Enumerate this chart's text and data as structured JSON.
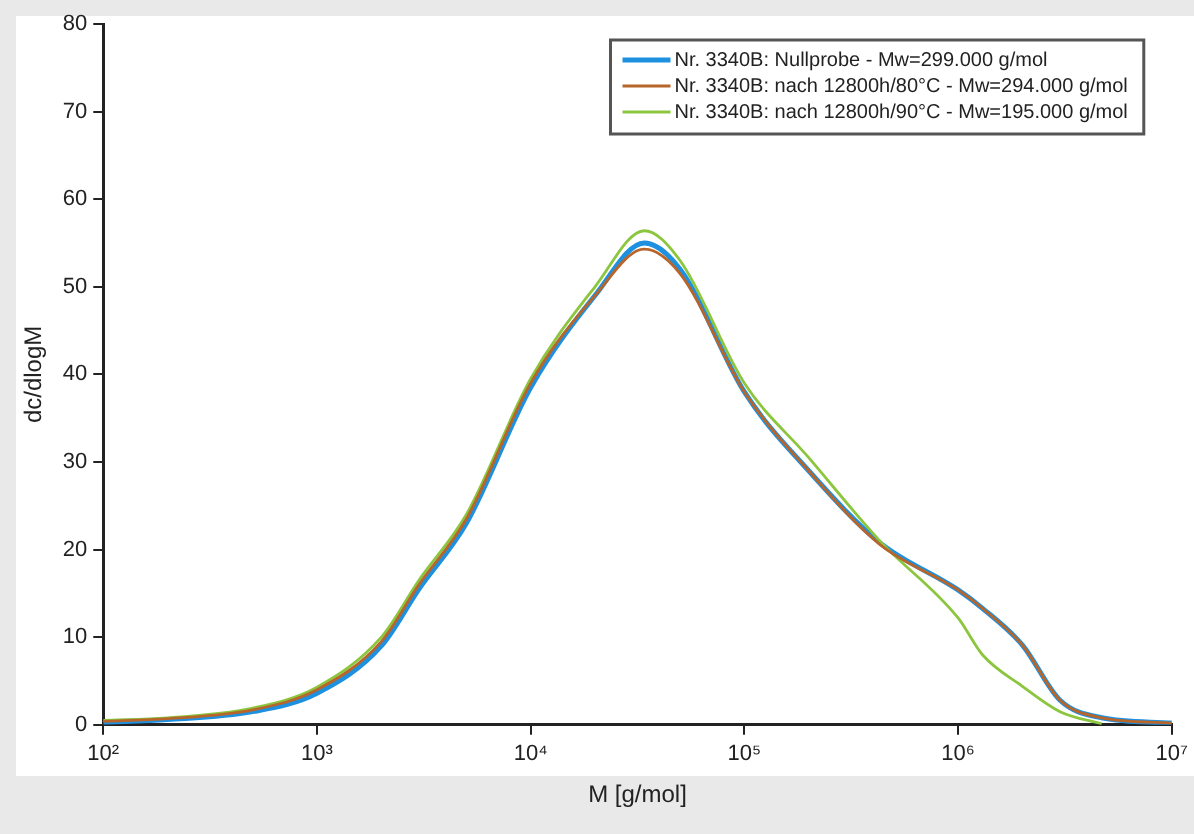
{
  "chart_data": {
    "type": "line",
    "xlabel": "M [g/mol]",
    "ylabel": "dc/dlogM",
    "log": "x",
    "x": [
      100,
      200,
      500,
      1000,
      2000,
      3000,
      5000,
      10000,
      20000,
      34000,
      50000,
      100000,
      200000,
      430000,
      1000000,
      1300000,
      2000000,
      3000000,
      4700000,
      10000000
    ],
    "series": [
      {
        "name": "Nr. 3340B: Nullprobe - Mw=299.000 g/mol",
        "color": "#1e90e0",
        "values": [
          0.3,
          0.6,
          1.5,
          3.6,
          9,
          15.5,
          23,
          38.5,
          49,
          55,
          52,
          38,
          29,
          20.8,
          15.4,
          13.3,
          9.1,
          2.8,
          0.8,
          0.2
        ]
      },
      {
        "name": "Nr. 3340B: nach 12800h/80°C - Mw=294.000 g/mol",
        "color": "#b8652a",
        "values": [
          0.4,
          0.7,
          1.7,
          4,
          9.5,
          16,
          23.5,
          39,
          49,
          54.3,
          51.5,
          38,
          29,
          20.6,
          15.4,
          13.3,
          9.1,
          2.8,
          0.8,
          0.2
        ]
      },
      {
        "name": "Nr. 3340B: nach 12800h/90°C - Mw=195.000 g/mol",
        "color": "#8cc63f",
        "values": [
          0.5,
          0.8,
          1.9,
          4.3,
          10,
          16.5,
          24,
          39.5,
          50,
          56.4,
          53,
          39,
          30.5,
          21,
          12.2,
          8,
          4.4,
          1.5,
          0.1,
          null
        ]
      }
    ],
    "xlim": [
      100,
      10000000
    ],
    "xticks": [
      {
        "value": 100,
        "label": "10²"
      },
      {
        "value": 1000,
        "label": "10³"
      },
      {
        "value": 10000,
        "label": "10⁴"
      },
      {
        "value": 100000,
        "label": "10⁵"
      },
      {
        "value": 1000000,
        "label": "10⁶"
      },
      {
        "value": 10000000,
        "label": "10⁷"
      }
    ],
    "ylim": [
      0,
      80
    ],
    "yticks": [
      0,
      10,
      20,
      30,
      40,
      50,
      60,
      70,
      80
    ],
    "grid": false,
    "legend": "top right",
    "marker": "none",
    "line_style": "solid"
  }
}
